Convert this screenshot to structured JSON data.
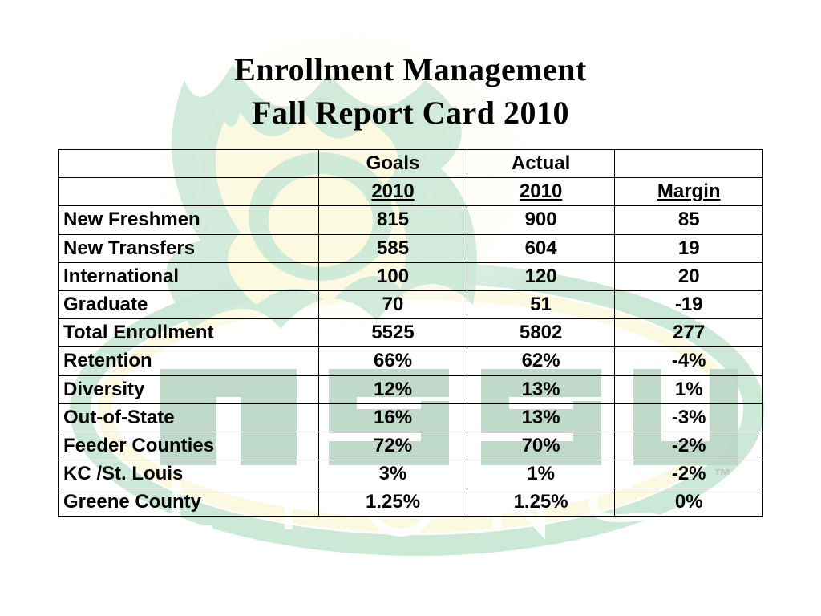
{
  "title_line1": "Enrollment Management",
  "title_line2": "Fall Report Card 2010",
  "headers": {
    "goals_label": "Goals",
    "actual_label": "Actual",
    "year_goals": "2010",
    "year_actual": "2010",
    "margin_label": "Margin"
  },
  "rows": [
    {
      "label": "New Freshmen",
      "goals": "815",
      "actual": "900",
      "margin": "85",
      "neg": false
    },
    {
      "label": "New Transfers",
      "goals": "585",
      "actual": "604",
      "margin": "19",
      "neg": false
    },
    {
      "label": "International",
      "goals": "100",
      "actual": "120",
      "margin": "20",
      "neg": false
    },
    {
      "label": "Graduate",
      "goals": "70",
      "actual": "51",
      "margin": "-19",
      "neg": true
    },
    {
      "label": "Total Enrollment",
      "goals": "5525",
      "actual": "5802",
      "margin": "277",
      "neg": false
    },
    {
      "label": "Retention",
      "goals": "66%",
      "actual": "62%",
      "margin": "-4%",
      "neg": true
    },
    {
      "label": "Diversity",
      "goals": "12%",
      "actual": "13%",
      "margin": "1%",
      "neg": false
    },
    {
      "label": "Out-of-State",
      "goals": "16%",
      "actual": "13%",
      "margin": "-3%",
      "neg": true
    },
    {
      "label": "Feeder Counties",
      "goals": "72%",
      "actual": "70%",
      "margin": "-2%",
      "neg": true
    },
    {
      "label": "KC /St. Louis",
      "goals": "3%",
      "actual": "1%",
      "margin": "-2%",
      "neg": true
    },
    {
      "label": "Greene County",
      "goals": "1.25%",
      "actual": "1.25%",
      "margin": "0%",
      "neg": false
    }
  ],
  "style": {
    "title_font": "Georgia serif",
    "title_fontsize_pt": 30,
    "body_font": "Arial",
    "body_fontsize_pt": 18,
    "negative_color": "#ff0000",
    "text_color": "#000000",
    "border_color": "#000000",
    "background_color": "#ffffff",
    "watermark": {
      "primary_color": "#6fbf8f",
      "secondary_color": "#f5f0a8",
      "accent_color": "#378a5e",
      "opacity": 0.35,
      "description": "MSSU Lions mascot logo — lion head over oval with MSSU text"
    }
  }
}
